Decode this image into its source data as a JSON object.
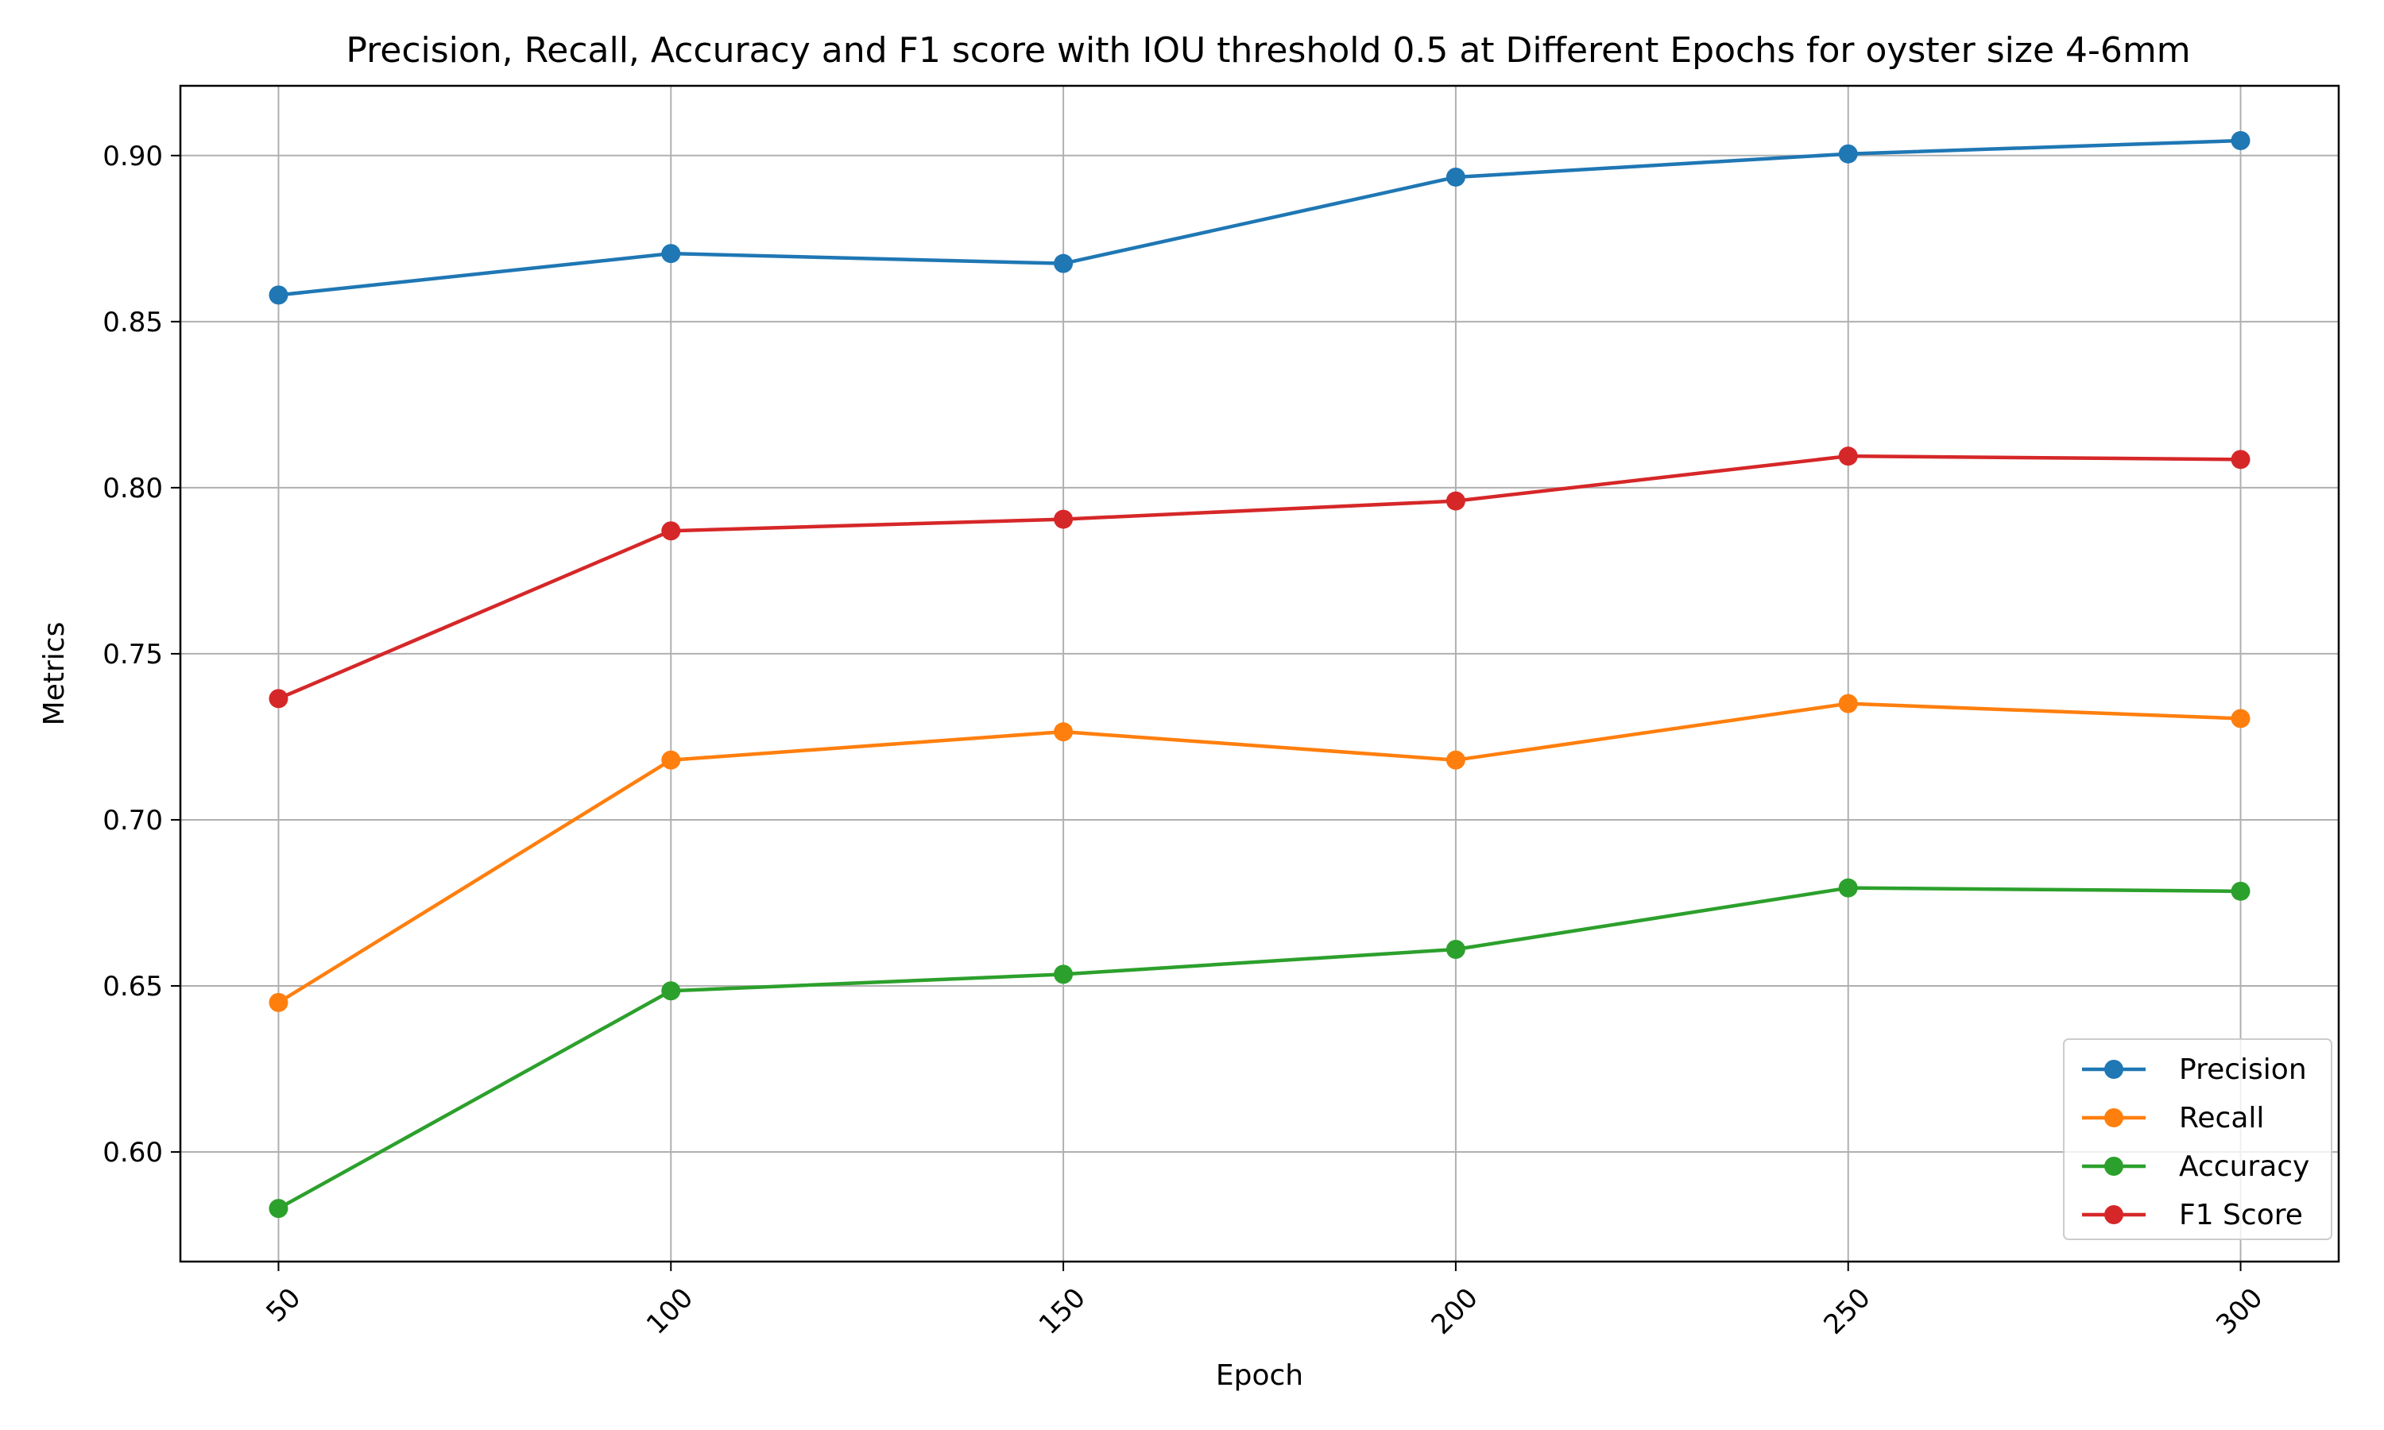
{
  "chart_data": {
    "type": "line",
    "title": "Precision, Recall, Accuracy and F1 score with IOU threshold 0.5 at Different Epochs for oyster size 4-6mm",
    "xlabel": "Epoch",
    "ylabel": "Metrics",
    "x": [
      50,
      100,
      150,
      200,
      250,
      300
    ],
    "x_tick_labels": [
      "50",
      "100",
      "150",
      "200",
      "250",
      "300"
    ],
    "xlim": [
      37.5,
      312.5
    ],
    "ylim": [
      0.567,
      0.921
    ],
    "y_ticks": [
      0.6,
      0.65,
      0.7,
      0.75,
      0.8,
      0.85,
      0.9
    ],
    "y_tick_labels": [
      "0.60",
      "0.65",
      "0.70",
      "0.75",
      "0.80",
      "0.85",
      "0.90"
    ],
    "grid": true,
    "legend_position": "lower-right",
    "x_tick_rotation_deg": 45,
    "series": [
      {
        "name": "Precision",
        "color": "#1f77b4",
        "values": [
          0.858,
          0.8705,
          0.8675,
          0.8935,
          0.9005,
          0.9045
        ]
      },
      {
        "name": "Recall",
        "color": "#ff7f0e",
        "values": [
          0.645,
          0.718,
          0.7265,
          0.718,
          0.735,
          0.7305
        ]
      },
      {
        "name": "Accuracy",
        "color": "#2ca02c",
        "values": [
          0.583,
          0.6485,
          0.6535,
          0.661,
          0.6795,
          0.6785
        ]
      },
      {
        "name": "F1 Score",
        "color": "#d62728",
        "values": [
          0.7365,
          0.787,
          0.7905,
          0.796,
          0.8095,
          0.8085
        ]
      }
    ]
  }
}
